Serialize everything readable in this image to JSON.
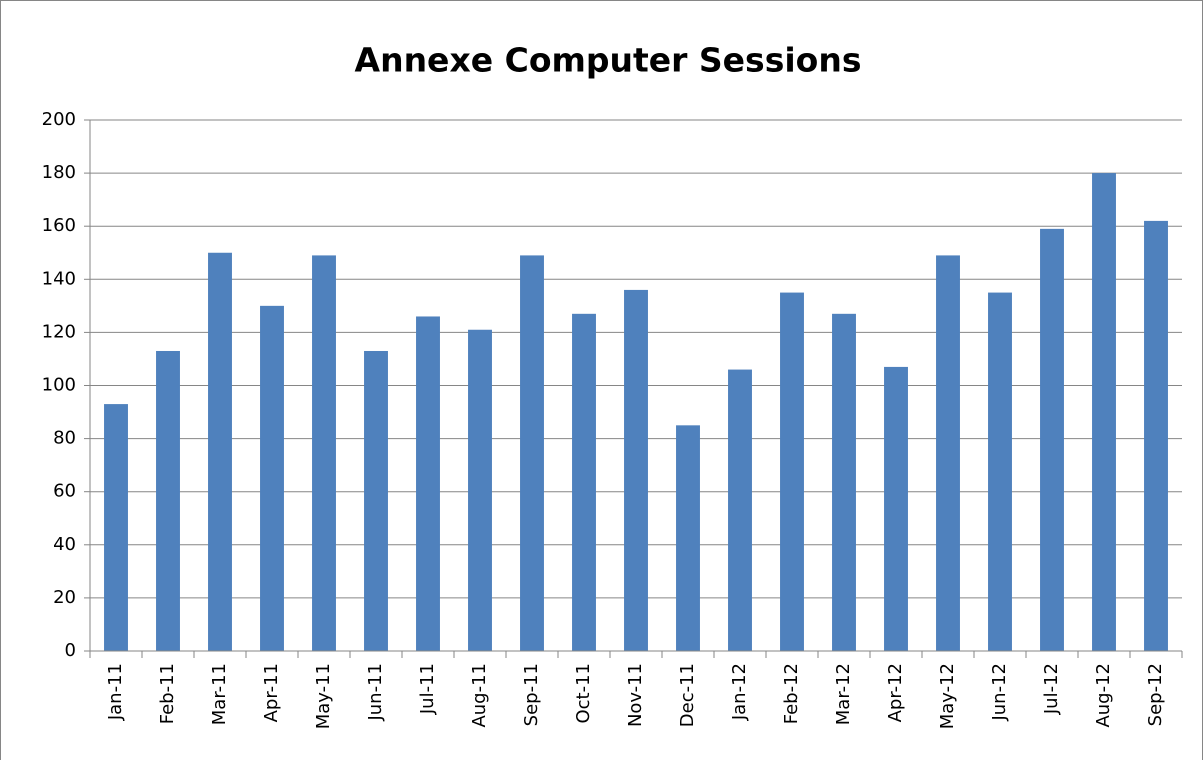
{
  "chart_data": {
    "type": "bar",
    "title": "Annexe Computer Sessions",
    "categories": [
      "Jan-11",
      "Feb-11",
      "Mar-11",
      "Apr-11",
      "May-11",
      "Jun-11",
      "Jul-11",
      "Aug-11",
      "Sep-11",
      "Oct-11",
      "Nov-11",
      "Dec-11",
      "Jan-12",
      "Feb-12",
      "Mar-12",
      "Apr-12",
      "May-12",
      "Jun-12",
      "Jul-12",
      "Aug-12",
      "Sep-12"
    ],
    "values": [
      93,
      113,
      150,
      130,
      149,
      113,
      126,
      121,
      149,
      127,
      136,
      85,
      106,
      135,
      127,
      107,
      149,
      135,
      159,
      180,
      162
    ],
    "color": "#4f81bd",
    "ylim": [
      0,
      200
    ],
    "yticks": [
      0,
      20,
      40,
      60,
      80,
      100,
      120,
      140,
      160,
      180,
      200
    ],
    "grid": true
  }
}
